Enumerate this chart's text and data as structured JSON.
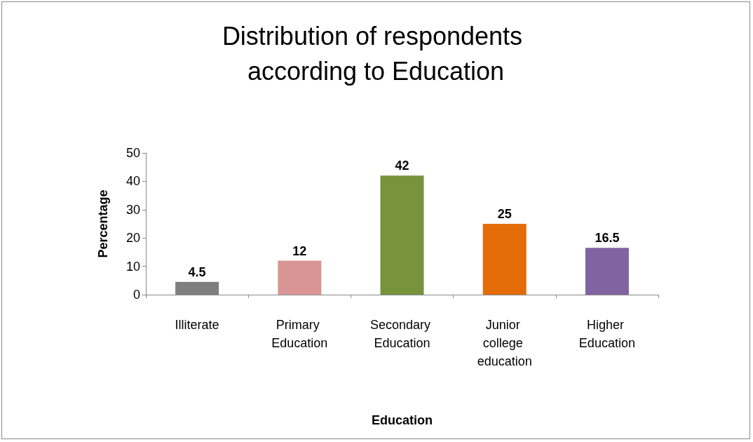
{
  "chart_data": {
    "type": "bar",
    "title": "Distribution of respondents according to Education",
    "xlabel": "Education",
    "ylabel": "Percentage",
    "categories": [
      "Illiterate",
      "Primary Education",
      "Secondary Education",
      "Junior college education",
      "Higher Education"
    ],
    "values": [
      4.5,
      12,
      42,
      25,
      16.5
    ],
    "colors": [
      "#7f7f7f",
      "#d99594",
      "#77933c",
      "#e36c09",
      "#8064a2"
    ],
    "ylim": [
      0,
      50
    ],
    "yticks": [
      0,
      10,
      20,
      30,
      40,
      50
    ],
    "grid": false,
    "data_labels": true
  }
}
